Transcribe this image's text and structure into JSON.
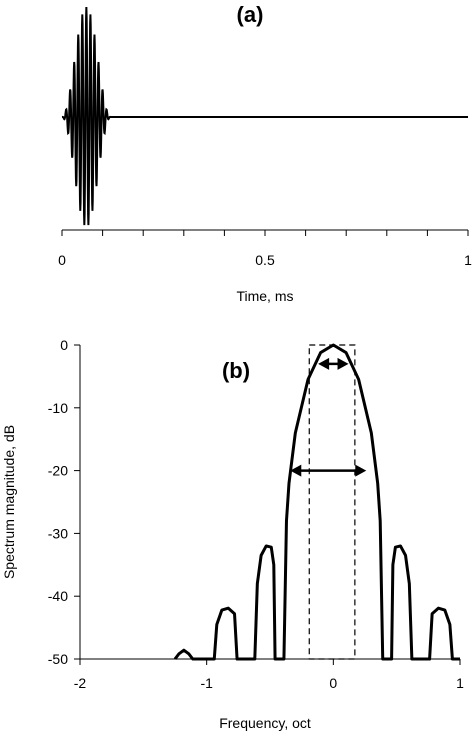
{
  "chart_data": [
    {
      "type": "line",
      "panel_label": "(a)",
      "title": "",
      "xlabel": "Time, ms",
      "ylabel": "",
      "xlim": [
        0,
        1
      ],
      "x_ticks": [
        0,
        0.5,
        1
      ],
      "x_tick_labels": [
        "0",
        "0.5",
        "1"
      ],
      "y_ticks_shown": false,
      "grid": false,
      "series": [
        {
          "kind": "tone-burst waveform",
          "burst_start_ms": 0.0,
          "burst_end_ms": 0.12,
          "burst_center_ms": 0.06,
          "oscillation_frequency_khz": 100,
          "peak_amplitude": 1.0,
          "baseline_after_burst": 0.0
        }
      ]
    },
    {
      "type": "line",
      "panel_label": "(b)",
      "title": "",
      "xlabel": "Frequency, oct",
      "ylabel": "Spectrum magnitude, dB",
      "xlim": [
        -2,
        1
      ],
      "ylim": [
        -50,
        0
      ],
      "x_ticks": [
        -2,
        -1,
        0,
        1
      ],
      "x_tick_labels": [
        "-2",
        "-1",
        "0",
        "1"
      ],
      "y_ticks": [
        0,
        -10,
        -20,
        -30,
        -40,
        -50
      ],
      "y_tick_labels": [
        "0",
        "-10",
        "-20",
        "-30",
        "-40",
        "-50"
      ],
      "grid": false,
      "series": [
        {
          "kind": "spectrum magnitude",
          "points": [
            [
              -1.25,
              -50
            ],
            [
              -1.22,
              -49.2
            ],
            [
              -1.18,
              -48.6
            ],
            [
              -1.14,
              -49.2
            ],
            [
              -1.11,
              -50
            ],
            [
              -0.94,
              -50
            ],
            [
              -0.92,
              -44.5
            ],
            [
              -0.88,
              -42.2
            ],
            [
              -0.83,
              -41.9
            ],
            [
              -0.78,
              -42.8
            ],
            [
              -0.76,
              -50
            ],
            [
              -0.62,
              -50
            ],
            [
              -0.6,
              -38
            ],
            [
              -0.57,
              -33.5
            ],
            [
              -0.53,
              -32
            ],
            [
              -0.49,
              -32.2
            ],
            [
              -0.47,
              -35
            ],
            [
              -0.46,
              -50
            ],
            [
              -0.39,
              -50
            ],
            [
              -0.37,
              -28
            ],
            [
              -0.35,
              -22
            ],
            [
              -0.3,
              -14
            ],
            [
              -0.2,
              -5.5
            ],
            [
              -0.1,
              -1.2
            ],
            [
              0,
              0
            ],
            [
              0.1,
              -1.2
            ],
            [
              0.2,
              -5.5
            ],
            [
              0.3,
              -14
            ],
            [
              0.35,
              -22
            ],
            [
              0.37,
              -28
            ],
            [
              0.39,
              -50
            ],
            [
              0.46,
              -50
            ],
            [
              0.47,
              -35
            ],
            [
              0.49,
              -32.2
            ],
            [
              0.53,
              -32
            ],
            [
              0.57,
              -33.5
            ],
            [
              0.6,
              -38
            ],
            [
              0.62,
              -50
            ],
            [
              0.76,
              -50
            ],
            [
              0.78,
              -42.8
            ],
            [
              0.83,
              -41.9
            ],
            [
              0.88,
              -42.2
            ],
            [
              0.92,
              -44.5
            ],
            [
              0.94,
              -50
            ],
            [
              1.0,
              -50
            ]
          ]
        }
      ],
      "annotations": [
        {
          "kind": "double-arrow",
          "x_from": -0.12,
          "x_to": 0.12,
          "y": -3
        },
        {
          "kind": "double-arrow",
          "x_from": -0.34,
          "x_to": 0.26,
          "y": -20
        },
        {
          "kind": "dashed-rectangle",
          "x_from": -0.19,
          "x_to": 0.17,
          "y_top": 0,
          "y_bottom": -50
        }
      ]
    }
  ]
}
